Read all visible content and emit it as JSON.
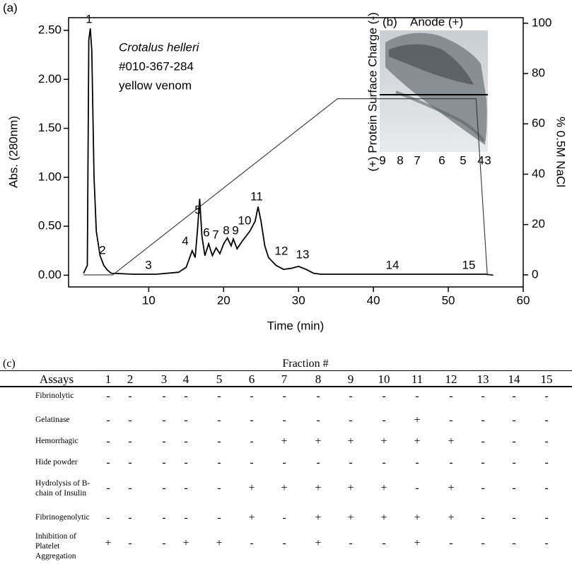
{
  "chart_data": {
    "type": "line",
    "panel_label": "(a)",
    "xlabel": "Time (min)",
    "ylabel": "Abs. (280nm)",
    "y2label": "% 0.5M NaCl",
    "xlim": [
      -0.7,
      60
    ],
    "xticks": [
      10,
      20,
      30,
      40,
      50,
      60
    ],
    "ylim": [
      -0.12,
      2.63
    ],
    "yticks": [
      {
        "value": 0,
        "label": "0.00"
      },
      {
        "value": 0.5,
        "label": "0.50"
      },
      {
        "value": 1,
        "label": "1.00"
      },
      {
        "value": 1.5,
        "label": "1.50"
      },
      {
        "value": 2,
        "label": "2.00"
      },
      {
        "value": 2.5,
        "label": "2.50"
      }
    ],
    "y2lim": [
      -4.8,
      102.2
    ],
    "y2ticks": [
      0,
      20,
      40,
      60,
      80,
      100
    ],
    "annotations": [
      "Crotalus helleri",
      "#010-367-284",
      "yellow venom"
    ],
    "peak_labels": [
      "1",
      "2",
      "3",
      "4",
      "5",
      "6",
      "7",
      "8",
      "9",
      "10",
      "11",
      "12",
      "13",
      "14",
      "15"
    ],
    "series": [
      {
        "color": "#000000",
        "x": [
          1.3,
          1.8,
          2.0,
          2.2,
          2.4,
          2.7,
          3.0,
          3.5,
          4.0,
          4.5,
          5.0,
          8,
          11,
          14,
          15,
          15.8,
          16.2,
          16.5,
          16.8,
          17.1,
          17.5,
          18,
          18.5,
          19,
          19.5,
          20,
          20.5,
          21,
          21.3,
          21.8,
          22.5,
          23.5,
          24.2,
          24.6,
          25,
          25.5,
          26,
          27,
          28,
          29,
          30,
          31,
          32,
          33,
          40,
          50,
          55,
          56
        ],
        "values": [
          0.02,
          0.1,
          2.4,
          2.52,
          2.3,
          1.0,
          0.45,
          0.2,
          0.1,
          0.05,
          0.02,
          0.01,
          0.01,
          0.03,
          0.08,
          0.25,
          0.18,
          0.45,
          0.78,
          0.4,
          0.2,
          0.32,
          0.2,
          0.28,
          0.22,
          0.32,
          0.38,
          0.3,
          0.37,
          0.27,
          0.35,
          0.45,
          0.55,
          0.7,
          0.55,
          0.3,
          0.18,
          0.1,
          0.06,
          0.07,
          0.09,
          0.06,
          0.02,
          0.01,
          0.01,
          0.01,
          0.01,
          0
        ]
      },
      {
        "color": "#333333",
        "axis": "y2",
        "x": [
          1.3,
          5.2,
          35.2,
          53.7,
          55.2,
          56
        ],
        "values": [
          0,
          0,
          70,
          70,
          0,
          0
        ]
      }
    ],
    "inset": {
      "panel_label": "(b)",
      "title": "Anode (+)",
      "ylabel": "(+) Protein Surface Charge (-)",
      "xticks": [
        "9",
        "8",
        "7",
        "6",
        "5",
        "4",
        "3"
      ]
    }
  },
  "table": {
    "panel_label": "(c)",
    "header": "Fraction #",
    "columns": [
      "Assays",
      "1",
      "2",
      "3",
      "4",
      "5",
      "6",
      "7",
      "8",
      "9",
      "10",
      "11",
      "12",
      "13",
      "14",
      "15"
    ],
    "rows": [
      [
        "Fibrinolytic",
        "-",
        "-",
        "-",
        "-",
        "-",
        "-",
        "-",
        "-",
        "-",
        "-",
        "-",
        "-",
        "-",
        "-",
        "-"
      ],
      [
        "Gelatinase",
        "-",
        "-",
        "-",
        "-",
        "-",
        "-",
        "-",
        "-",
        "-",
        "-",
        "+",
        "-",
        "-",
        "-",
        "-"
      ],
      [
        "Hemorrhagic",
        "-",
        "-",
        "-",
        "-",
        "-",
        "-",
        "+",
        "+",
        "+",
        "+",
        "+",
        "+",
        "-",
        "-",
        "-"
      ],
      [
        "Hide powder",
        "-",
        "-",
        "-",
        "-",
        "-",
        "-",
        "-",
        "-",
        "-",
        "-",
        "-",
        "-",
        "-",
        "-",
        "-"
      ],
      [
        "Hydrolysis of B-chain of Insulin",
        "-",
        "-",
        "-",
        "-",
        "-",
        "+",
        "+",
        "+",
        "+",
        "+",
        "-",
        "+",
        "-",
        "-",
        "-"
      ],
      [
        "Fibrinogenolytic",
        "-",
        "-",
        "-",
        "-",
        "-",
        "+",
        "-",
        "+",
        "+",
        "+",
        "+",
        "+",
        "-",
        "-",
        "-"
      ],
      [
        "Inhibition of Platelet Aggregation",
        "+",
        "-",
        "-",
        "+",
        "+",
        "-",
        "-",
        "+",
        "-",
        "-",
        "+",
        "-",
        "-",
        "-",
        "-"
      ]
    ]
  }
}
